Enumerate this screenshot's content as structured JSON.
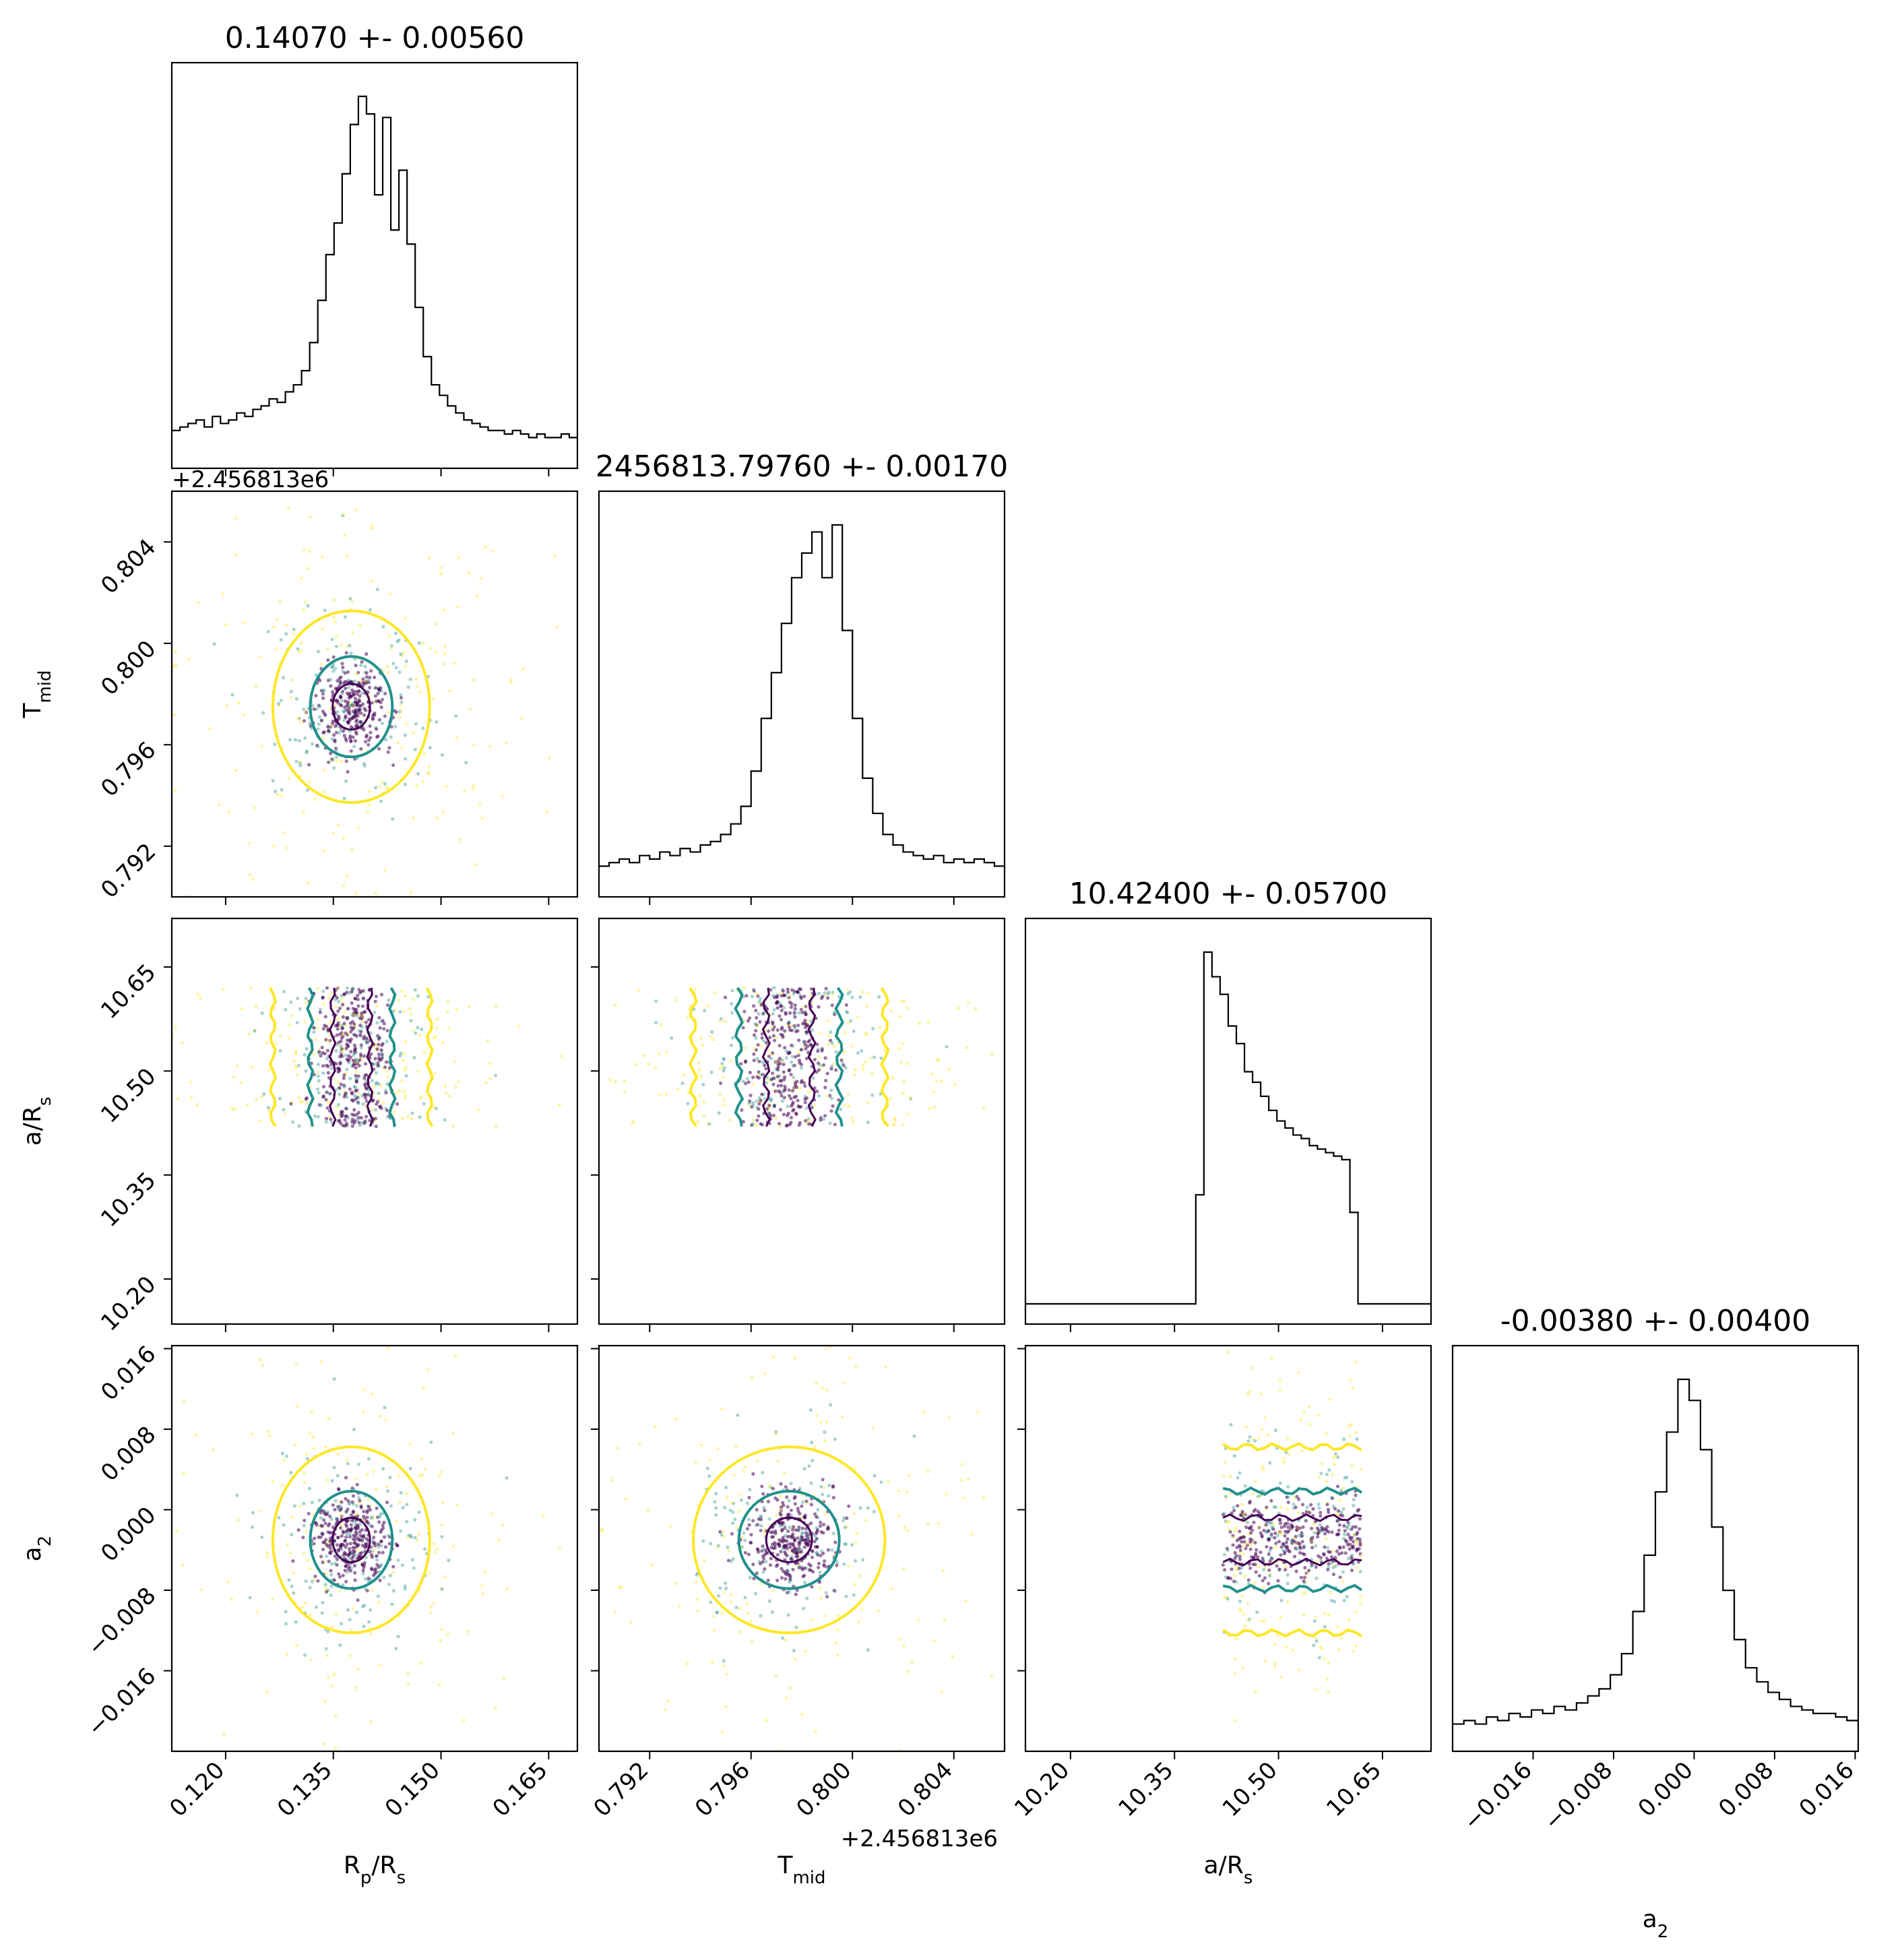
{
  "chart_data": {
    "type": "corner",
    "colors": {
      "hist": "#000000",
      "inner": "#440154",
      "mid": "#21918c",
      "outer": "#fde725"
    },
    "params": [
      {
        "label": "R",
        "sub": "p",
        "label_tail": "/R",
        "sub2": "s",
        "title": "0.14070 +- 0.00560",
        "range": [
          0.1125,
          0.169
        ],
        "ticks": [
          "0.120",
          "0.135",
          "0.150",
          "0.165"
        ],
        "tick_values": [
          0.12,
          0.135,
          0.15,
          0.165
        ],
        "mean": 0.1375,
        "sigma": 0.0026
      },
      {
        "label": "T",
        "sub": "mid",
        "label_tail": "",
        "sub2": "",
        "title": "2456813.79760 +- 0.00170",
        "offset_text": "+2.456813e6",
        "range": [
          0.79,
          0.806
        ],
        "ticks": [
          "0.792",
          "0.796",
          "0.800",
          "0.804"
        ],
        "tick_values": [
          0.792,
          0.796,
          0.8,
          0.804
        ],
        "mean": 0.7975,
        "sigma": 0.0009
      },
      {
        "label": "a/R",
        "sub": "s",
        "label_tail": "",
        "sub2": "",
        "title": "10.42400 +- 0.05700",
        "range": [
          10.135,
          10.72
        ],
        "ticks": [
          "10.20",
          "10.35",
          "10.50",
          "10.65"
        ],
        "tick_values": [
          10.2,
          10.35,
          10.5,
          10.65
        ],
        "mean": 10.52,
        "sigma": 0.06,
        "support": [
          10.42,
          10.62
        ]
      },
      {
        "label": "a",
        "sub": "2",
        "label_tail": "",
        "sub2": "",
        "title": "-0.00380 +- 0.00400",
        "range": [
          -0.024,
          0.0163
        ],
        "ticks": [
          "−0.016",
          "−0.008",
          "0.000",
          "0.008",
          "0.016"
        ],
        "tick_values": [
          -0.016,
          -0.008,
          0.0,
          0.008,
          0.016
        ],
        "mean": -0.003,
        "sigma": 0.0022
      }
    ],
    "hist1": [
      0.05,
      0.06,
      0.07,
      0.08,
      0.06,
      0.09,
      0.07,
      0.08,
      0.1,
      0.09,
      0.11,
      0.12,
      0.14,
      0.13,
      0.16,
      0.18,
      0.22,
      0.3,
      0.42,
      0.55,
      0.64,
      0.78,
      0.92,
      1.0,
      0.95,
      0.72,
      0.94,
      0.62,
      0.79,
      0.58,
      0.4,
      0.26,
      0.18,
      0.15,
      0.12,
      0.1,
      0.08,
      0.07,
      0.06,
      0.05,
      0.05,
      0.04,
      0.05,
      0.04,
      0.03,
      0.04,
      0.03,
      0.03,
      0.04,
      0.03
    ],
    "hist2": [
      0.03,
      0.04,
      0.05,
      0.04,
      0.06,
      0.05,
      0.07,
      0.06,
      0.08,
      0.07,
      0.09,
      0.1,
      0.12,
      0.15,
      0.2,
      0.3,
      0.45,
      0.58,
      0.72,
      0.85,
      0.92,
      0.98,
      0.85,
      1.0,
      0.7,
      0.45,
      0.28,
      0.18,
      0.12,
      0.09,
      0.07,
      0.06,
      0.05,
      0.06,
      0.04,
      0.05,
      0.04,
      0.05,
      0.04,
      0.03
    ],
    "hist3": [
      0,
      0,
      0,
      0,
      0,
      0,
      0,
      0,
      0,
      0,
      0,
      0,
      0,
      0,
      0,
      0,
      0,
      0,
      0,
      0,
      0,
      0.31,
      1.0,
      0.93,
      0.88,
      0.79,
      0.74,
      0.66,
      0.63,
      0.59,
      0.55,
      0.52,
      0.5,
      0.48,
      0.47,
      0.45,
      0.44,
      0.43,
      0.42,
      0.41,
      0.26,
      0,
      0,
      0,
      0,
      0,
      0,
      0,
      0,
      0
    ],
    "hist4": [
      0.02,
      0.03,
      0.02,
      0.04,
      0.03,
      0.05,
      0.04,
      0.06,
      0.05,
      0.07,
      0.06,
      0.08,
      0.1,
      0.12,
      0.16,
      0.22,
      0.34,
      0.5,
      0.68,
      0.85,
      1.0,
      0.94,
      0.8,
      0.58,
      0.4,
      0.26,
      0.18,
      0.14,
      0.11,
      0.09,
      0.07,
      0.06,
      0.05,
      0.05,
      0.04,
      0.03
    ]
  }
}
